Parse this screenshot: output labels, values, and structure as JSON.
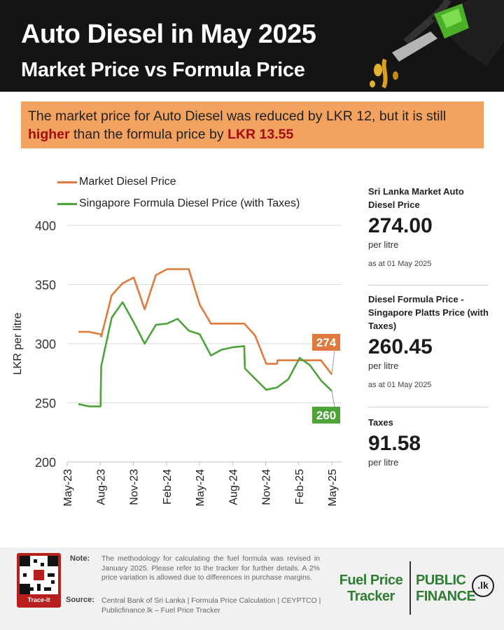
{
  "header": {
    "title": "Auto Diesel in May 2025",
    "subtitle": "Market Price vs Formula Price"
  },
  "banner": {
    "text_1": "The market price for Auto Diesel was reduced by LKR 12, but it is still",
    "highlight_1": "higher",
    "text_2": "than the formula price by",
    "highlight_2": "LKR 13.55"
  },
  "colors": {
    "market": "#e0793b",
    "formula": "#4ea338",
    "banner": "#f3a25f",
    "header": "#141414",
    "highlight": "#a30d0d"
  },
  "chart_data": {
    "type": "line",
    "title": "",
    "ylabel": "LKR per litre",
    "xlabel": "",
    "ylim": [
      200,
      400
    ],
    "yticks": [
      200,
      250,
      300,
      350,
      400
    ],
    "grid": true,
    "legend_position": "top-left",
    "x_ticks": [
      "May-23",
      "Aug-23",
      "Nov-23",
      "Feb-24",
      "May-24",
      "Aug-24",
      "Nov-24",
      "Feb-25",
      "May-25"
    ],
    "x_range": [
      "2023-05-01",
      "2025-05-01"
    ],
    "series": [
      {
        "name": "Market Diesel Price",
        "color": "#e0793b",
        "points": [
          [
            "2023-06-01",
            310
          ],
          [
            "2023-07-01",
            310
          ],
          [
            "2023-08-01",
            308
          ],
          [
            "2023-08-03",
            306
          ],
          [
            "2023-09-01",
            341
          ],
          [
            "2023-10-01",
            351
          ],
          [
            "2023-11-01",
            356
          ],
          [
            "2023-12-01",
            329
          ],
          [
            "2024-01-01",
            358
          ],
          [
            "2024-02-01",
            363
          ],
          [
            "2024-03-01",
            363
          ],
          [
            "2024-04-01",
            363
          ],
          [
            "2024-05-01",
            333
          ],
          [
            "2024-06-01",
            317
          ],
          [
            "2024-07-01",
            317
          ],
          [
            "2024-08-01",
            317
          ],
          [
            "2024-09-01",
            317
          ],
          [
            "2024-10-01",
            307
          ],
          [
            "2024-11-01",
            283
          ],
          [
            "2024-12-01",
            283
          ],
          [
            "2024-12-02",
            286
          ],
          [
            "2025-01-01",
            286
          ],
          [
            "2025-02-01",
            286
          ],
          [
            "2025-03-01",
            286
          ],
          [
            "2025-04-01",
            286
          ],
          [
            "2025-05-01",
            274
          ]
        ]
      },
      {
        "name": "Singapore Formula Diesel Price (with Taxes)",
        "color": "#4ea338",
        "points": [
          [
            "2023-06-01",
            249
          ],
          [
            "2023-07-01",
            247
          ],
          [
            "2023-08-01",
            247
          ],
          [
            "2023-08-03",
            281
          ],
          [
            "2023-09-01",
            322
          ],
          [
            "2023-10-01",
            335
          ],
          [
            "2023-11-01",
            318
          ],
          [
            "2023-12-01",
            300
          ],
          [
            "2024-01-01",
            316
          ],
          [
            "2024-02-01",
            317
          ],
          [
            "2024-03-01",
            321
          ],
          [
            "2024-04-01",
            311
          ],
          [
            "2024-05-01",
            308
          ],
          [
            "2024-06-01",
            290
          ],
          [
            "2024-07-01",
            295
          ],
          [
            "2024-08-01",
            297
          ],
          [
            "2024-09-01",
            298
          ],
          [
            "2024-09-03",
            279
          ],
          [
            "2024-11-01",
            261
          ],
          [
            "2024-12-01",
            263
          ],
          [
            "2025-01-01",
            270
          ],
          [
            "2025-02-01",
            288
          ],
          [
            "2025-03-01",
            282
          ],
          [
            "2025-04-01",
            269
          ],
          [
            "2025-05-01",
            260
          ]
        ]
      }
    ],
    "end_labels": [
      {
        "series": "Market Diesel Price",
        "text": "274"
      },
      {
        "series": "Singapore Formula Diesel Price (with Taxes)",
        "text": "260"
      }
    ]
  },
  "sidebar": {
    "market": {
      "label": "Sri Lanka Market Auto Diesel Price",
      "value": "274.00",
      "unit": "per litre",
      "date": "as at 01 May 2025"
    },
    "formula": {
      "label": "Diesel Formula Price - Singapore Platts Price (with Taxes)",
      "value": "260.45",
      "unit": "per litre",
      "date": "as at 01 May 2025"
    },
    "taxes": {
      "label": "Taxes",
      "value": "91.58",
      "unit": "per litre"
    }
  },
  "footer": {
    "qr_label": "Trace-it",
    "note_label": "Note:",
    "note_text": "The methodology for calculating the fuel formula was revised in January 2025. Please refer to the tracker for further details. A 2% price variation is allowed due to differences in purchase margins.",
    "source_label": "Source:",
    "source_text": "Central Bank of Sri Lanka | Formula Price Calculation | CEYPTCO | Publicfinance.lk – Fuel Price Tracker",
    "brand_1_line_1": "Fuel Price",
    "brand_1_line_2": "Tracker",
    "brand_2_line_1": "PUBLIC",
    "brand_2_line_2": "FINANCE",
    "brand_2_badge": ".lk"
  }
}
